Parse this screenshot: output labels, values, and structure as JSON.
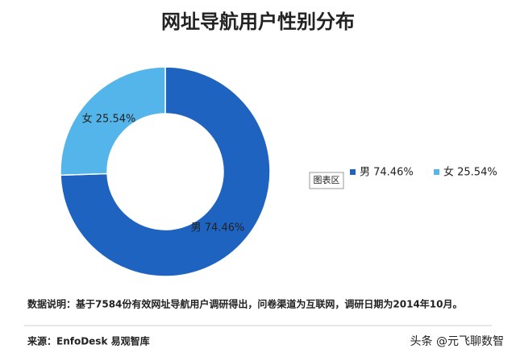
{
  "chart_data": {
    "type": "pie",
    "donut": true,
    "title": "网址导航用户性别分布",
    "categories": [
      "男",
      "女"
    ],
    "values": [
      74.46,
      25.54
    ],
    "value_labels": [
      "男 74.46%",
      "女 25.54%"
    ],
    "colors": [
      "#1f63c1",
      "#54b5ea"
    ],
    "legend_position": "right",
    "chart_area_label": "图表区"
  },
  "note": "数据说明：基于7584份有效网址导航用户调研得出，问卷渠道为互联网，调研日期为2014年10月。",
  "source": "来源：EnfoDesk 易观智库",
  "watermark": "头条 @元飞聊数智"
}
